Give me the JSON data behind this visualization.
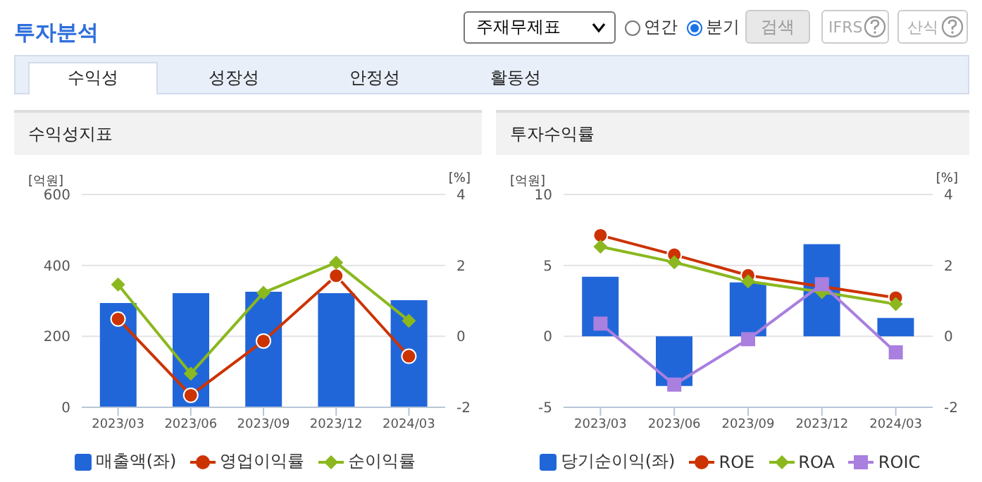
{
  "chart_data": [
    {
      "type": "other",
      "title": "투자분석",
      "annotations": [
        "주재무제표",
        "연간",
        "분기",
        "검색",
        "IFRS",
        "산식",
        "수익성",
        "성장성",
        "안정성",
        "활동성"
      ]
    },
    {
      "type": "bar",
      "title": "수익성지표",
      "ylabel": "[억원]",
      "y2label": "[%]",
      "categories": [
        "2023/03",
        "2023/06",
        "2023/09",
        "2023/12",
        "2024/03"
      ],
      "ylim": [
        0,
        600
      ],
      "yticks": [
        0,
        200,
        400,
        600
      ],
      "y2lim": [
        -2,
        4
      ],
      "y2ticks": [
        -2,
        0,
        2,
        4
      ],
      "grid": "y",
      "legend": "bottom",
      "series": [
        {
          "name": "매출액(좌)",
          "type": "bar",
          "color": "#2166d9",
          "values": [
            294,
            322,
            326,
            322,
            302
          ]
        },
        {
          "name": "영업이익률",
          "type": "line",
          "axis": "y2",
          "marker": "circle",
          "color": "#cc3300",
          "values": [
            0.49,
            -1.66,
            -0.13,
            1.71,
            -0.56
          ]
        },
        {
          "name": "순이익률",
          "type": "line",
          "axis": "y2",
          "marker": "diamond",
          "color": "#8ab81e",
          "values": [
            1.46,
            -1.05,
            1.23,
            2.08,
            0.44
          ]
        }
      ]
    },
    {
      "type": "bar",
      "title": "투자수익률",
      "ylabel": "[억원]",
      "y2label": "[%]",
      "categories": [
        "2023/03",
        "2023/06",
        "2023/09",
        "2023/12",
        "2024/03"
      ],
      "ylim": [
        -5,
        10
      ],
      "yticks": [
        -5,
        0,
        5,
        10
      ],
      "y2lim": [
        -2,
        4
      ],
      "y2ticks": [
        -2,
        0,
        2,
        4
      ],
      "grid": "y",
      "legend": "bottom",
      "series": [
        {
          "name": "당기순이익(좌)",
          "type": "bar",
          "color": "#2166d9",
          "values": [
            4.2,
            -3.5,
            3.8,
            6.5,
            1.3
          ]
        },
        {
          "name": "ROE",
          "type": "line",
          "axis": "y2",
          "marker": "circle",
          "color": "#cc3300",
          "values": [
            2.85,
            2.3,
            1.72,
            null,
            1.09
          ]
        },
        {
          "name": "ROA",
          "type": "line",
          "axis": "y2",
          "marker": "diamond",
          "color": "#8ab81e",
          "values": [
            2.53,
            2.09,
            1.55,
            1.25,
            0.91
          ]
        },
        {
          "name": "ROIC",
          "type": "line",
          "axis": "y2",
          "marker": "square",
          "color": "#a97fdf",
          "values": [
            0.36,
            -1.36,
            -0.08,
            1.47,
            -0.45
          ]
        }
      ]
    }
  ]
}
